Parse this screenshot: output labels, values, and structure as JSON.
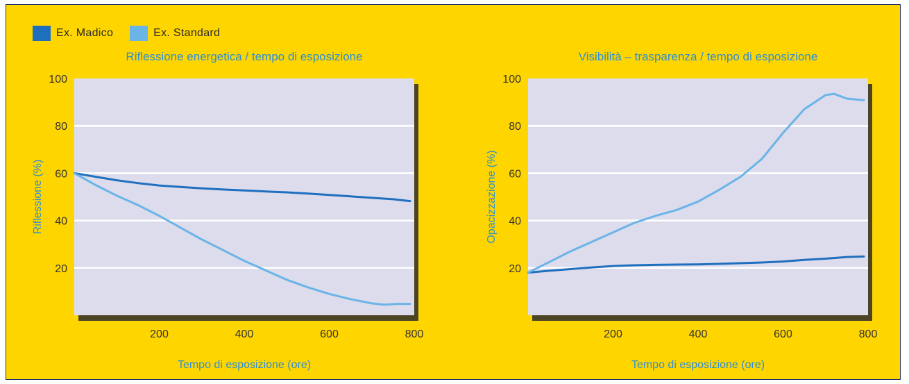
{
  "legend": [
    {
      "label": "Ex. Madico",
      "color": "#1f6fbf"
    },
    {
      "label": "Ex. Standard",
      "color": "#6ab4e8"
    }
  ],
  "colors": {
    "background": "#ffd500",
    "plot": "#dcdcec",
    "title": "#2e8fd0"
  },
  "chart_data": [
    {
      "type": "line",
      "title": "Riflessione energetica / tempo di esposizione",
      "xlabel": "Tempo di esposizione (ore)",
      "ylabel": "Riflessione (%)",
      "xlim": [
        0,
        800
      ],
      "ylim": [
        0,
        100
      ],
      "xticks": [
        "200",
        "400",
        "600",
        "800"
      ],
      "yticks": [
        "20",
        "40",
        "60",
        "80",
        "100"
      ],
      "grid": "horizontal",
      "series": [
        {
          "name": "Ex. Madico",
          "x": [
            0,
            50,
            100,
            150,
            200,
            250,
            300,
            350,
            400,
            450,
            500,
            550,
            600,
            650,
            700,
            750,
            790
          ],
          "y": [
            60,
            58.5,
            57,
            55.8,
            54.8,
            54.2,
            53.6,
            53.1,
            52.7,
            52.3,
            51.9,
            51.4,
            50.8,
            50.2,
            49.6,
            49,
            48.2
          ]
        },
        {
          "name": "Ex. Standard",
          "x": [
            0,
            50,
            100,
            150,
            200,
            250,
            300,
            350,
            400,
            450,
            500,
            550,
            600,
            650,
            700,
            730,
            760,
            790
          ],
          "y": [
            60,
            55,
            50.5,
            46.5,
            42,
            37,
            32,
            27.5,
            23,
            19,
            15,
            11.8,
            9,
            6.8,
            5,
            4.5,
            4.8,
            4.8
          ]
        }
      ]
    },
    {
      "type": "line",
      "title": "Visibilità – trasparenza / tempo di esposizione",
      "xlabel": "Tempo di esposizione (ore)",
      "ylabel": "Opacizzazione (%)",
      "xlim": [
        0,
        800
      ],
      "ylim": [
        0,
        100
      ],
      "xticks": [
        "200",
        "400",
        "600",
        "800"
      ],
      "yticks": [
        "20",
        "40",
        "60",
        "80",
        "100"
      ],
      "grid": "horizontal",
      "series": [
        {
          "name": "Ex. Madico",
          "x": [
            0,
            50,
            100,
            150,
            200,
            250,
            300,
            350,
            400,
            450,
            500,
            550,
            600,
            650,
            700,
            750,
            790
          ],
          "y": [
            18,
            18.8,
            19.5,
            20.2,
            20.8,
            21.1,
            21.3,
            21.4,
            21.5,
            21.7,
            22,
            22.3,
            22.7,
            23.4,
            23.9,
            24.6,
            24.8
          ]
        },
        {
          "name": "Ex. Standard",
          "x": [
            0,
            50,
            100,
            150,
            200,
            250,
            300,
            350,
            400,
            450,
            500,
            550,
            600,
            650,
            700,
            720,
            750,
            790
          ],
          "y": [
            18,
            22.5,
            27,
            31,
            35,
            39,
            42,
            44.5,
            48,
            53,
            58.5,
            66,
            77,
            87,
            93,
            93.5,
            91.5,
            90.8
          ]
        }
      ]
    }
  ]
}
